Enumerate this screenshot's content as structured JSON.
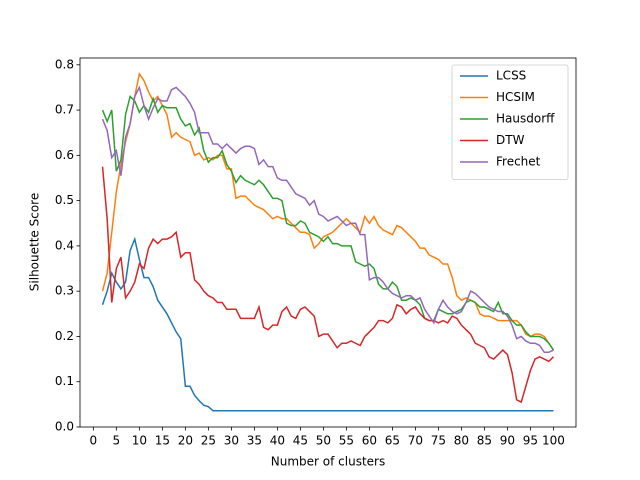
{
  "chart_data": {
    "type": "line",
    "xlabel": "Number of clusters",
    "ylabel": "Silhouette Score",
    "x": [
      2,
      3,
      4,
      5,
      6,
      7,
      8,
      9,
      10,
      11,
      12,
      13,
      14,
      15,
      16,
      17,
      18,
      19,
      20,
      21,
      22,
      23,
      24,
      25,
      26,
      27,
      28,
      29,
      30,
      31,
      32,
      33,
      34,
      35,
      36,
      37,
      38,
      39,
      40,
      41,
      42,
      43,
      44,
      45,
      46,
      47,
      48,
      49,
      50,
      51,
      52,
      53,
      54,
      55,
      56,
      57,
      58,
      59,
      60,
      61,
      62,
      63,
      64,
      65,
      66,
      67,
      68,
      69,
      70,
      71,
      72,
      73,
      74,
      75,
      76,
      77,
      78,
      79,
      80,
      81,
      82,
      83,
      84,
      85,
      86,
      87,
      88,
      89,
      90,
      91,
      92,
      93,
      94,
      95,
      96,
      97,
      98,
      99,
      100
    ],
    "series": [
      {
        "name": "LCSS",
        "color": "#1f77b4",
        "values": [
          0.27,
          0.3,
          0.34,
          0.32,
          0.305,
          0.32,
          0.39,
          0.415,
          0.37,
          0.33,
          0.33,
          0.31,
          0.28,
          0.265,
          0.25,
          0.23,
          0.21,
          0.195,
          0.09,
          0.09,
          0.07,
          0.058,
          0.048,
          0.045,
          0.036,
          0.036,
          0.036,
          0.036,
          0.036,
          0.036,
          0.036,
          0.036,
          0.036,
          0.036,
          0.036,
          0.036,
          0.036,
          0.036,
          0.036,
          0.036,
          0.036,
          0.036,
          0.036,
          0.036,
          0.036,
          0.036,
          0.036,
          0.036,
          0.036,
          0.036,
          0.036,
          0.036,
          0.036,
          0.036,
          0.036,
          0.036,
          0.036,
          0.036,
          0.036,
          0.036,
          0.036,
          0.036,
          0.036,
          0.036,
          0.036,
          0.036,
          0.036,
          0.036,
          0.036,
          0.036,
          0.036,
          0.036,
          0.036,
          0.036,
          0.036,
          0.036,
          0.036,
          0.036,
          0.036,
          0.036,
          0.036,
          0.036,
          0.036,
          0.036,
          0.036,
          0.036,
          0.036,
          0.036,
          0.036,
          0.036,
          0.036,
          0.036,
          0.036,
          0.036,
          0.036,
          0.036,
          0.036,
          0.036,
          0.036
        ]
      },
      {
        "name": "HCSIM",
        "color": "#ff7f0e",
        "values": [
          0.3,
          0.34,
          0.43,
          0.52,
          0.58,
          0.63,
          0.67,
          0.73,
          0.78,
          0.765,
          0.74,
          0.72,
          0.73,
          0.71,
          0.69,
          0.64,
          0.65,
          0.64,
          0.635,
          0.63,
          0.6,
          0.605,
          0.59,
          0.595,
          0.59,
          0.6,
          0.6,
          0.57,
          0.57,
          0.505,
          0.51,
          0.51,
          0.5,
          0.49,
          0.485,
          0.48,
          0.47,
          0.46,
          0.465,
          0.46,
          0.46,
          0.45,
          0.44,
          0.43,
          0.43,
          0.425,
          0.395,
          0.405,
          0.42,
          0.425,
          0.43,
          0.44,
          0.45,
          0.46,
          0.45,
          0.44,
          0.43,
          0.465,
          0.45,
          0.465,
          0.445,
          0.435,
          0.43,
          0.425,
          0.445,
          0.44,
          0.43,
          0.42,
          0.41,
          0.395,
          0.395,
          0.38,
          0.375,
          0.37,
          0.36,
          0.36,
          0.33,
          0.29,
          0.28,
          0.285,
          0.28,
          0.275,
          0.25,
          0.245,
          0.245,
          0.24,
          0.235,
          0.235,
          0.235,
          0.235,
          0.235,
          0.225,
          0.205,
          0.2,
          0.205,
          0.205,
          0.2,
          0.185,
          0.17
        ]
      },
      {
        "name": "Hausdorff",
        "color": "#2ca02c",
        "values": [
          0.7,
          0.675,
          0.7,
          0.565,
          0.59,
          0.69,
          0.73,
          0.72,
          0.695,
          0.71,
          0.695,
          0.725,
          0.695,
          0.71,
          0.705,
          0.705,
          0.705,
          0.68,
          0.665,
          0.67,
          0.645,
          0.66,
          0.61,
          0.585,
          0.595,
          0.595,
          0.61,
          0.58,
          0.565,
          0.54,
          0.555,
          0.545,
          0.54,
          0.535,
          0.545,
          0.535,
          0.52,
          0.505,
          0.505,
          0.5,
          0.45,
          0.445,
          0.445,
          0.455,
          0.45,
          0.43,
          0.425,
          0.42,
          0.41,
          0.42,
          0.405,
          0.405,
          0.4,
          0.4,
          0.4,
          0.365,
          0.36,
          0.355,
          0.36,
          0.35,
          0.315,
          0.305,
          0.305,
          0.32,
          0.31,
          0.28,
          0.28,
          0.285,
          0.28,
          0.27,
          0.24,
          0.235,
          0.235,
          0.26,
          0.255,
          0.25,
          0.25,
          0.255,
          0.26,
          0.275,
          0.28,
          0.275,
          0.265,
          0.265,
          0.26,
          0.255,
          0.275,
          0.25,
          0.25,
          0.235,
          0.225,
          0.225,
          0.21,
          0.2,
          0.2,
          0.2,
          0.195,
          0.185,
          0.17
        ]
      },
      {
        "name": "DTW",
        "color": "#d62728",
        "values": [
          0.575,
          0.46,
          0.275,
          0.35,
          0.375,
          0.285,
          0.3,
          0.32,
          0.36,
          0.35,
          0.395,
          0.415,
          0.405,
          0.415,
          0.415,
          0.42,
          0.43,
          0.375,
          0.385,
          0.385,
          0.325,
          0.315,
          0.3,
          0.29,
          0.285,
          0.275,
          0.275,
          0.26,
          0.26,
          0.26,
          0.24,
          0.24,
          0.24,
          0.24,
          0.265,
          0.22,
          0.215,
          0.225,
          0.225,
          0.255,
          0.265,
          0.245,
          0.24,
          0.26,
          0.265,
          0.255,
          0.245,
          0.2,
          0.205,
          0.205,
          0.19,
          0.175,
          0.185,
          0.185,
          0.19,
          0.185,
          0.18,
          0.2,
          0.21,
          0.22,
          0.235,
          0.235,
          0.23,
          0.24,
          0.27,
          0.265,
          0.25,
          0.26,
          0.265,
          0.25,
          0.24,
          0.235,
          0.235,
          0.23,
          0.235,
          0.23,
          0.245,
          0.24,
          0.225,
          0.215,
          0.205,
          0.185,
          0.18,
          0.175,
          0.155,
          0.15,
          0.16,
          0.17,
          0.16,
          0.12,
          0.06,
          0.055,
          0.09,
          0.125,
          0.15,
          0.155,
          0.15,
          0.145,
          0.155
        ]
      },
      {
        "name": "Frechet",
        "color": "#9467bd",
        "values": [
          0.68,
          0.655,
          0.595,
          0.61,
          0.555,
          0.64,
          0.67,
          0.73,
          0.75,
          0.71,
          0.68,
          0.705,
          0.725,
          0.72,
          0.72,
          0.745,
          0.75,
          0.74,
          0.73,
          0.715,
          0.695,
          0.65,
          0.65,
          0.65,
          0.625,
          0.625,
          0.615,
          0.625,
          0.615,
          0.605,
          0.615,
          0.62,
          0.62,
          0.615,
          0.58,
          0.59,
          0.575,
          0.575,
          0.55,
          0.545,
          0.545,
          0.53,
          0.515,
          0.51,
          0.505,
          0.49,
          0.5,
          0.47,
          0.465,
          0.455,
          0.46,
          0.465,
          0.455,
          0.445,
          0.45,
          0.45,
          0.425,
          0.425,
          0.325,
          0.33,
          0.33,
          0.32,
          0.305,
          0.295,
          0.29,
          0.285,
          0.29,
          0.29,
          0.28,
          0.285,
          0.26,
          0.245,
          0.23,
          0.26,
          0.28,
          0.265,
          0.255,
          0.25,
          0.255,
          0.275,
          0.3,
          0.295,
          0.285,
          0.275,
          0.265,
          0.26,
          0.255,
          0.255,
          0.245,
          0.225,
          0.195,
          0.2,
          0.19,
          0.185,
          0.185,
          0.18,
          0.165,
          0.165,
          0.17
        ]
      }
    ],
    "xlim": [
      -2.9,
      104.9
    ],
    "ylim": [
      0,
      0.815
    ],
    "xticks": [
      0,
      5,
      10,
      15,
      20,
      25,
      30,
      35,
      40,
      45,
      50,
      55,
      60,
      65,
      70,
      75,
      80,
      85,
      90,
      95,
      100
    ],
    "yticks": [
      {
        "value": 0,
        "label": "0.0"
      },
      0.1,
      0.2,
      0.3,
      0.4,
      0.5,
      0.6,
      0.7,
      0.8
    ],
    "legend": "upper right"
  }
}
